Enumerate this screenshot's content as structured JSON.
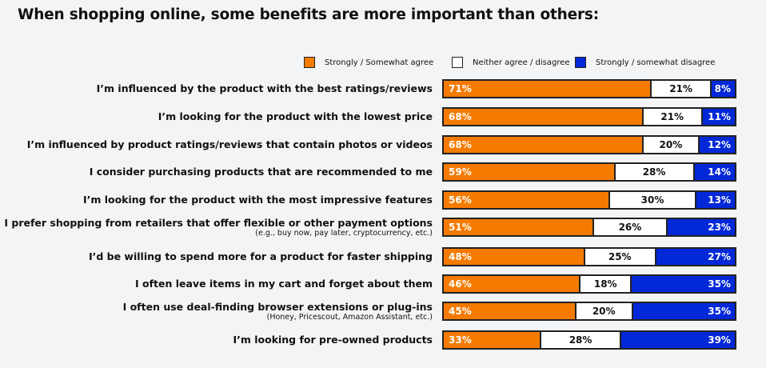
{
  "chart_data": {
    "type": "bar",
    "orientation": "horizontal",
    "stacked": true,
    "title": "When shopping online, some benefits are more important than others:",
    "legend_position": "top-right",
    "categories": [
      {
        "label": "I’m influenced by the product with the best ratings/reviews",
        "sub": ""
      },
      {
        "label": "I’m looking for the product with the lowest price",
        "sub": ""
      },
      {
        "label": "I’m influenced by product ratings/reviews that contain photos or videos",
        "sub": ""
      },
      {
        "label": "I consider purchasing products that are recommended to me",
        "sub": ""
      },
      {
        "label": "I’m looking for the product with the most impressive features",
        "sub": ""
      },
      {
        "label": "I prefer shopping from retailers that offer flexible or other payment options",
        "sub": "(e.g., buy now, pay later, cryptocurrency, etc.)"
      },
      {
        "label": "I’d be willing to spend more for a product for faster shipping",
        "sub": ""
      },
      {
        "label": "I often leave items in my cart and forget about them",
        "sub": ""
      },
      {
        "label": "I often use deal-finding browser extensions or plug-ins",
        "sub": "(Honey, Pricescout, Amazon Assistant, etc.)"
      },
      {
        "label": "I’m looking for pre-owned products",
        "sub": ""
      }
    ],
    "series": [
      {
        "name": "Strongly / Somewhat agree",
        "color": "#f47b00",
        "values": [
          71,
          68,
          68,
          59,
          56,
          51,
          48,
          46,
          45,
          33
        ]
      },
      {
        "name": "Neither agree / disagree",
        "color": "#ffffff",
        "values": [
          21,
          21,
          20,
          28,
          30,
          26,
          25,
          18,
          20,
          28
        ]
      },
      {
        "name": "Strongly / somewhat disagree",
        "color": "#0328d8",
        "values": [
          8,
          11,
          12,
          14,
          13,
          23,
          27,
          35,
          35,
          39
        ]
      }
    ],
    "unit": "%"
  }
}
